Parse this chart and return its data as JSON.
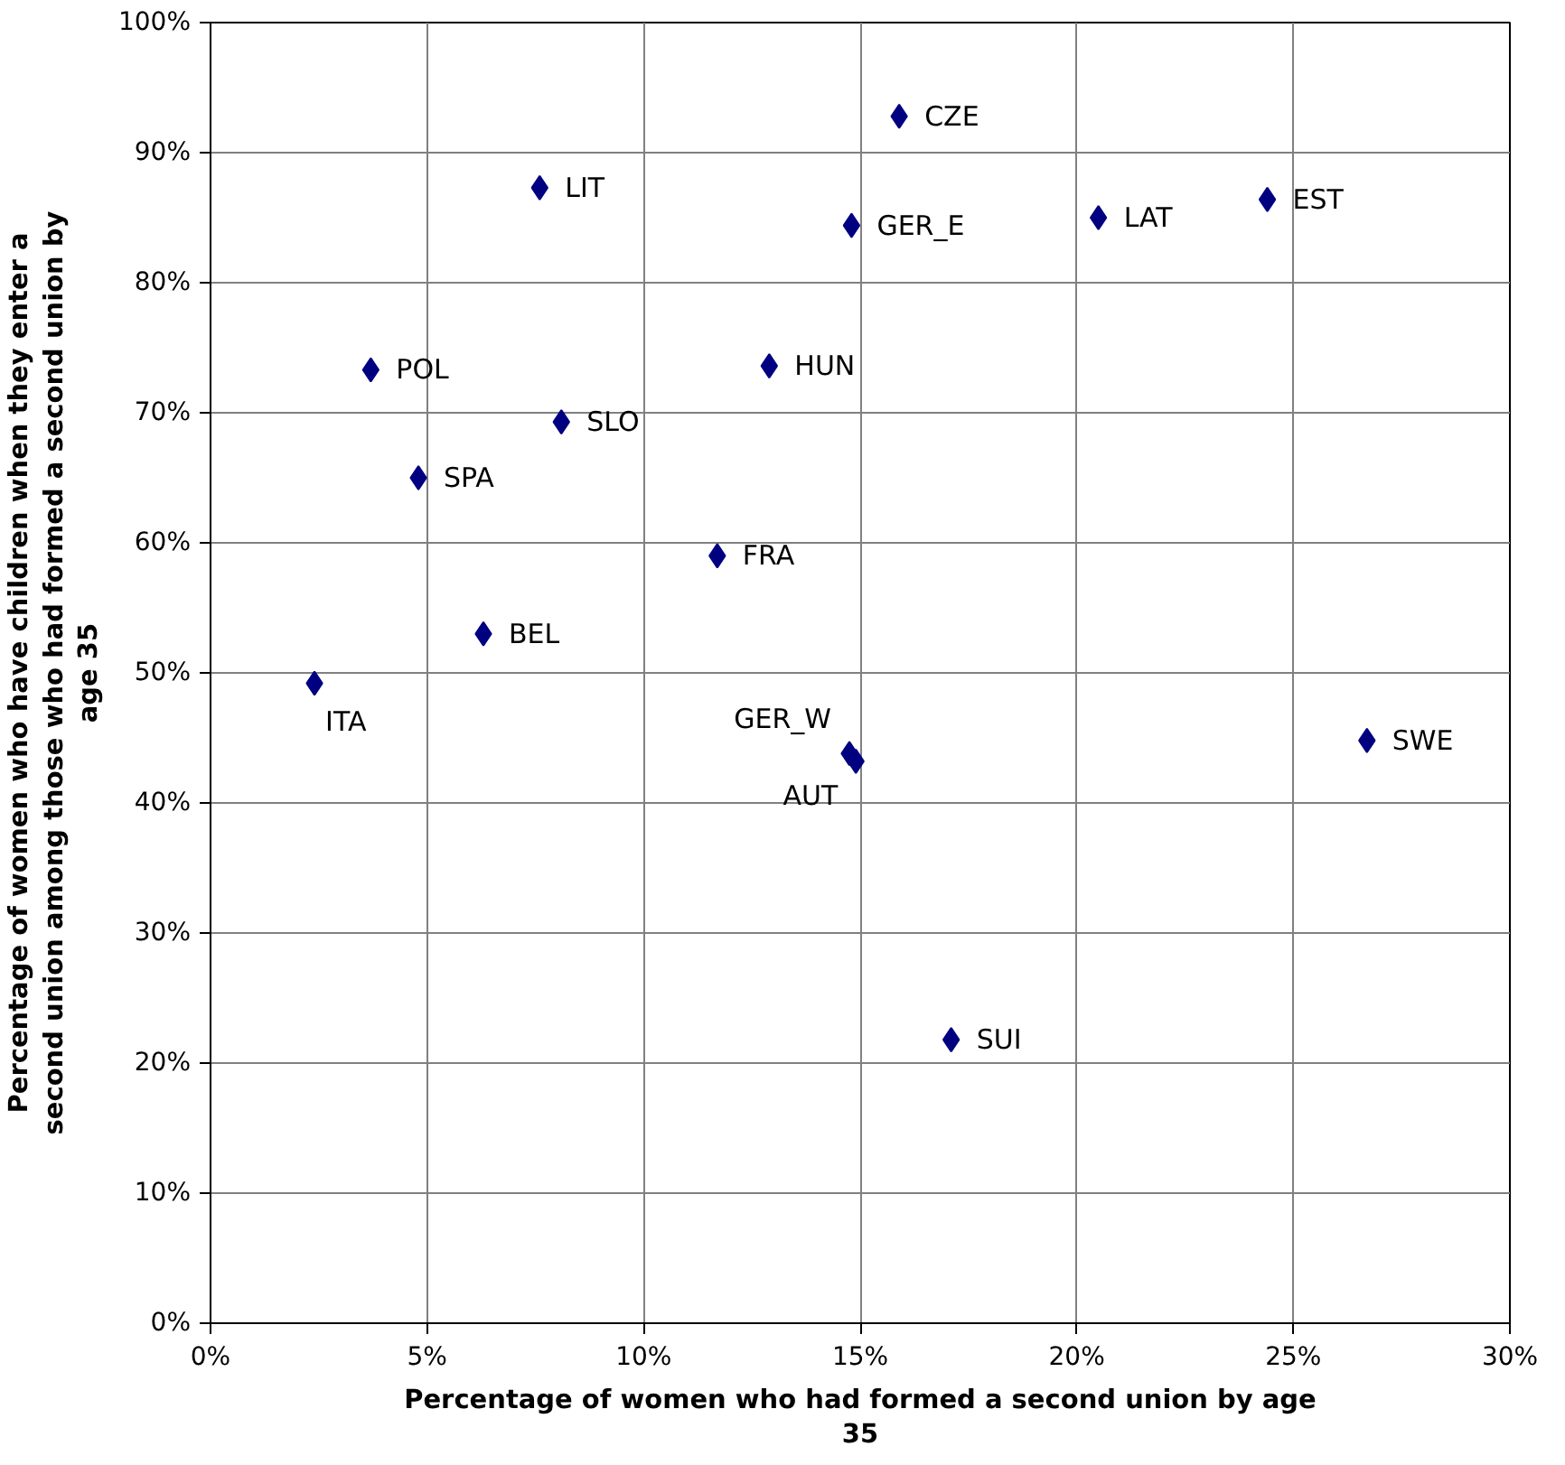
{
  "chart_data": {
    "type": "scatter",
    "xlabel": "Percentage of women who had formed a second union by age 35",
    "ylabel": "Percentage of women who have children when they enter a second union among those who had formed a second union by age 35",
    "x": [
      2.4,
      3.7,
      4.8,
      6.3,
      7.6,
      8.1,
      11.7,
      12.9,
      14.8,
      14.75,
      14.9,
      15.9,
      17.1,
      20.5,
      24.4,
      26.7
    ],
    "series": [
      {
        "color": "#000080",
        "values": [
          49.2,
          73.3,
          65.0,
          53.0,
          87.3,
          69.3,
          59.0,
          73.6,
          84.4,
          43.8,
          43.2,
          92.8,
          21.8,
          85.0,
          86.4,
          44.8
        ]
      }
    ],
    "annotations": [
      {
        "text": "ITA",
        "x": 2.4,
        "y": 49.2
      },
      {
        "text": "POL",
        "x": 3.7,
        "y": 73.3
      },
      {
        "text": "SPA",
        "x": 4.8,
        "y": 65.0
      },
      {
        "text": "BEL",
        "x": 6.3,
        "y": 53.0
      },
      {
        "text": "LIT",
        "x": 7.6,
        "y": 87.3
      },
      {
        "text": "SLO",
        "x": 8.1,
        "y": 69.3
      },
      {
        "text": "FRA",
        "x": 11.7,
        "y": 59.0
      },
      {
        "text": "HUN",
        "x": 12.9,
        "y": 73.6
      },
      {
        "text": "GER_E",
        "x": 14.8,
        "y": 84.4
      },
      {
        "text": "GER_W",
        "x": 14.75,
        "y": 43.8
      },
      {
        "text": "AUT",
        "x": 14.9,
        "y": 43.2
      },
      {
        "text": "CZE",
        "x": 15.9,
        "y": 92.8
      },
      {
        "text": "SUI",
        "x": 17.1,
        "y": 21.8
      },
      {
        "text": "LAT",
        "x": 20.5,
        "y": 85.0
      },
      {
        "text": "EST",
        "x": 24.4,
        "y": 86.4
      },
      {
        "text": "SWE",
        "x": 26.7,
        "y": 44.8
      }
    ],
    "xlim": [
      0,
      30
    ],
    "ylim": [
      0,
      100
    ],
    "xticks": [
      {
        "value": 0,
        "label": "0%"
      },
      {
        "value": 5,
        "label": "5%"
      },
      {
        "value": 10,
        "label": "10%"
      },
      {
        "value": 15,
        "label": "15%"
      },
      {
        "value": 20,
        "label": "20%"
      },
      {
        "value": 25,
        "label": "25%"
      },
      {
        "value": 30,
        "label": "30%"
      }
    ],
    "yticks": [
      {
        "value": 0,
        "label": "0%"
      },
      {
        "value": 10,
        "label": "10%"
      },
      {
        "value": 20,
        "label": "20%"
      },
      {
        "value": 30,
        "label": "30%"
      },
      {
        "value": 40,
        "label": "40%"
      },
      {
        "value": 50,
        "label": "50%"
      },
      {
        "value": 60,
        "label": "60%"
      },
      {
        "value": 70,
        "label": "70%"
      },
      {
        "value": 80,
        "label": "80%"
      },
      {
        "value": 90,
        "label": "90%"
      },
      {
        "value": 100,
        "label": "100%"
      }
    ],
    "grid": true,
    "marker": "diamond"
  }
}
